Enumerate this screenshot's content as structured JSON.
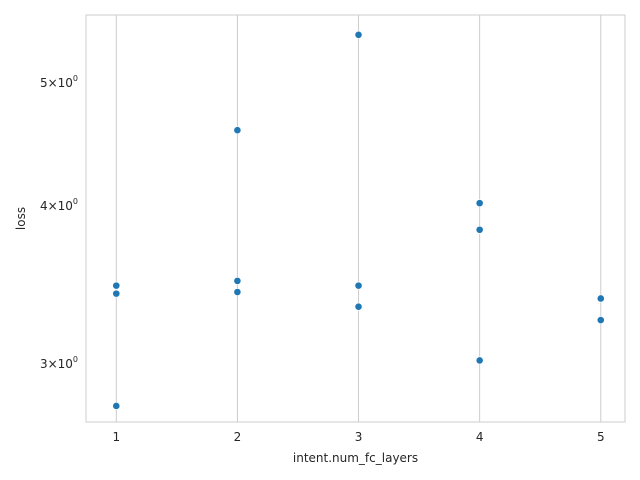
{
  "chart_data": {
    "type": "scatter",
    "xlabel": "intent.num_fc_layers",
    "ylabel": "loss",
    "x_ticks": [
      1,
      2,
      3,
      4,
      5
    ],
    "x_tick_labels": [
      "1",
      "2",
      "3",
      "4",
      "5"
    ],
    "xlim": [
      0.75,
      5.2
    ],
    "y_scale": "log",
    "ylim": [
      2.7,
      5.66
    ],
    "y_ticks": [
      3,
      4,
      5
    ],
    "y_tick_labels": [
      {
        "base": "3×10",
        "exp": "0"
      },
      {
        "base": "4×10",
        "exp": "0"
      },
      {
        "base": "5×10",
        "exp": "0"
      }
    ],
    "grid": "vertical",
    "marker_color": "#1f77b4",
    "points": [
      {
        "x": 1,
        "y": 3.46
      },
      {
        "x": 1,
        "y": 3.41
      },
      {
        "x": 1,
        "y": 2.78
      },
      {
        "x": 2,
        "y": 4.59
      },
      {
        "x": 2,
        "y": 3.49
      },
      {
        "x": 2,
        "y": 3.42
      },
      {
        "x": 3,
        "y": 5.46
      },
      {
        "x": 3,
        "y": 3.46
      },
      {
        "x": 3,
        "y": 3.33
      },
      {
        "x": 4,
        "y": 4.02
      },
      {
        "x": 4,
        "y": 3.83
      },
      {
        "x": 4,
        "y": 3.02
      },
      {
        "x": 5,
        "y": 3.38
      },
      {
        "x": 5,
        "y": 3.25
      }
    ]
  }
}
